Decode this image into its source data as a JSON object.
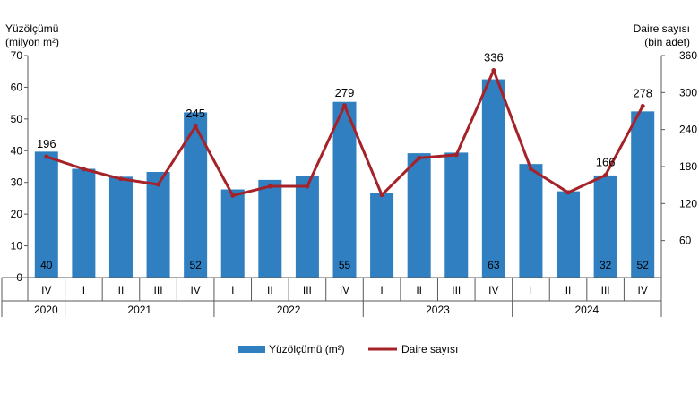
{
  "chart_data": {
    "type": "bar+line",
    "y_left_title": [
      "Yüzölçümü",
      "(milyon m²)"
    ],
    "y_right_title": [
      "Daire sayısı",
      "(bin adet)"
    ],
    "y_left_ticks": [
      "0",
      "10",
      "20",
      "30",
      "40",
      "50",
      "60",
      "70"
    ],
    "y_right_ticks": [
      "60",
      "120",
      "180",
      "240",
      "300",
      "360"
    ],
    "ylim_left": [
      0,
      70
    ],
    "ylim_right": [
      0,
      360
    ],
    "grid": false,
    "legend_position": "bottom",
    "categories": [
      "IV",
      "I",
      "II",
      "III",
      "IV",
      "I",
      "II",
      "III",
      "IV",
      "I",
      "II",
      "III",
      "IV",
      "I",
      "II",
      "III",
      "IV"
    ],
    "years": [
      {
        "label": "2020",
        "span": 1
      },
      {
        "label": "2021",
        "span": 4
      },
      {
        "label": "2022",
        "span": 4
      },
      {
        "label": "2023",
        "span": 4
      },
      {
        "label": "2024",
        "span": 4
      }
    ],
    "series": [
      {
        "name": "Yüzölçümü (m²)",
        "type": "bar",
        "axis": "left",
        "color": "#2F7FC1",
        "values": [
          39.7,
          34.3,
          31.8,
          33.3,
          52.1,
          27.8,
          30.8,
          32.1,
          55.4,
          26.8,
          39.2,
          39.4,
          62.5,
          35.8,
          27.2,
          32.2,
          52.4
        ],
        "labels": [
          "40",
          "",
          "",
          "",
          "52",
          "",
          "",
          "",
          "55",
          "",
          "",
          "",
          "63",
          "",
          "",
          "32",
          "52"
        ]
      },
      {
        "name": "Daire sayısı",
        "type": "line",
        "axis": "right",
        "color": "#A52228",
        "values": [
          196,
          176,
          160,
          151,
          245,
          133,
          148,
          148,
          279,
          134,
          194,
          199,
          336,
          176,
          138,
          166,
          278
        ],
        "labels": [
          "196",
          "",
          "",
          "",
          "245",
          "",
          "",
          "",
          "279",
          "",
          "",
          "",
          "336",
          "",
          "",
          "166",
          "278"
        ]
      }
    ]
  }
}
